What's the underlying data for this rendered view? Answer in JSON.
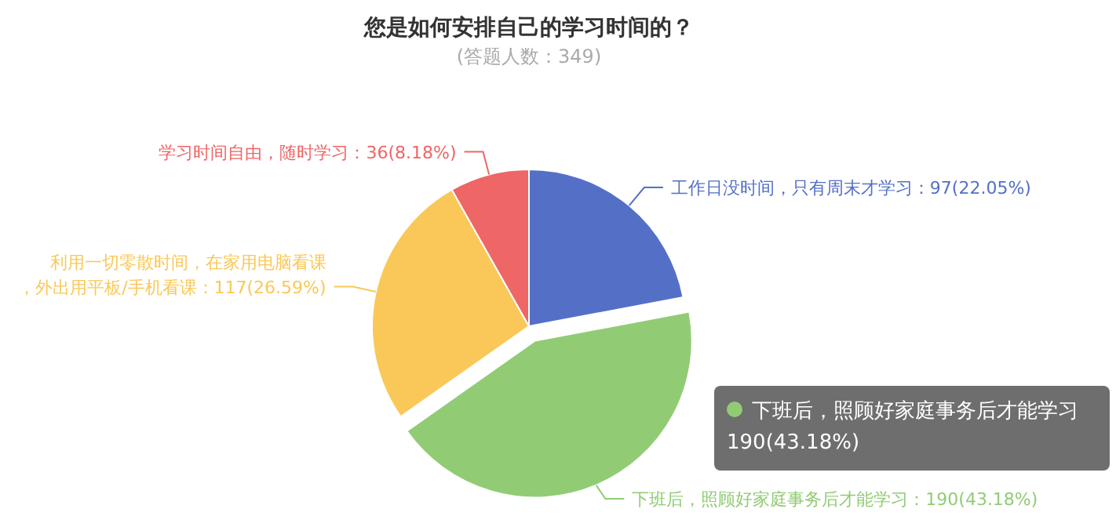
{
  "chart_data": {
    "type": "pie",
    "title": "您是如何安排自己的学习时间的？",
    "subtitle": "(答题人数：349)",
    "categories": [
      "工作日没时间，只有周末才学习",
      "下班后，照顾好家庭事务后才能学习",
      "利用一切零散时间，在家用电脑看课，外出用平板/手机看课",
      "学习时间自由，随时学习"
    ],
    "values": [
      97,
      190,
      117,
      36
    ],
    "colors": [
      "#5470c6",
      "#91cc75",
      "#fac858",
      "#ee6666"
    ],
    "value_labels": [
      "：97(22.05%)",
      "：190(43.18%)",
      "：117(26.59%)",
      "：36(8.18%)"
    ],
    "annotations": [
      {
        "text": "下班后，照顾好家庭事务后才能学习\n190(43.18%)",
        "x": "下班后，照顾好家庭事务后才能学习"
      }
    ]
  }
}
